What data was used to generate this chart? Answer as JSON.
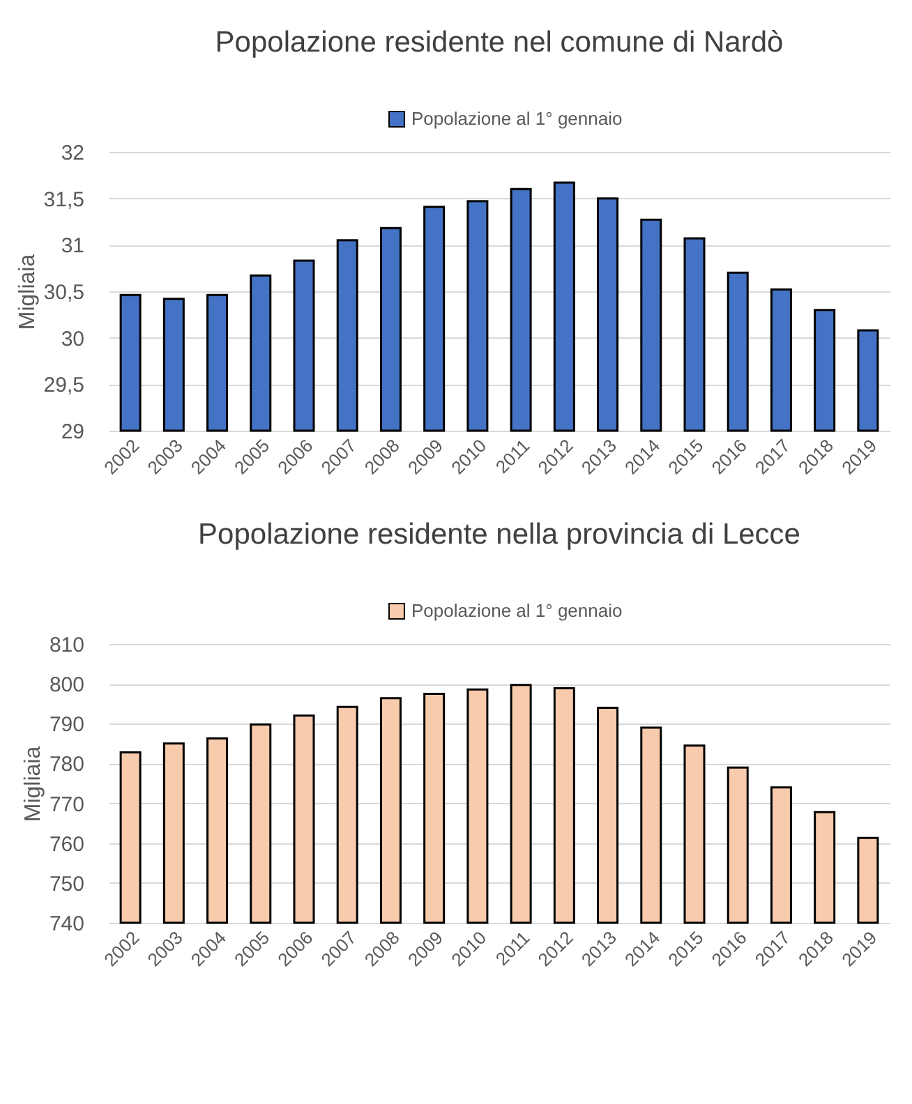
{
  "chart_data": [
    {
      "type": "bar",
      "title": "Popolazione residente nel comune di Nardò",
      "ylabel": "Migliaia",
      "categories": [
        "2002",
        "2003",
        "2004",
        "2005",
        "2006",
        "2007",
        "2008",
        "2009",
        "2010",
        "2011",
        "2012",
        "2013",
        "2014",
        "2015",
        "2016",
        "2017",
        "2018",
        "2019"
      ],
      "series": [
        {
          "name": "Popolazione al 1° gennaio",
          "color": "#4472c4",
          "values": [
            30.46,
            30.42,
            30.46,
            30.67,
            30.83,
            31.05,
            31.18,
            31.41,
            31.47,
            31.6,
            31.67,
            31.5,
            31.27,
            31.07,
            30.7,
            30.52,
            30.3,
            30.08
          ]
        }
      ],
      "ylim": [
        29,
        32
      ],
      "yticks": [
        29,
        {
          "value": 29.5,
          "label": "29,5"
        },
        30,
        {
          "value": 30.5,
          "label": "30,5"
        },
        31,
        {
          "value": 31.5,
          "label": "31,5"
        },
        32
      ],
      "grid": "y",
      "legend": "top"
    },
    {
      "type": "bar",
      "title": "Popolazione residente nella provincia di Lecce",
      "ylabel": "Migliaia",
      "categories": [
        "2002",
        "2003",
        "2004",
        "2005",
        "2006",
        "2007",
        "2008",
        "2009",
        "2010",
        "2011",
        "2012",
        "2013",
        "2014",
        "2015",
        "2016",
        "2017",
        "2018",
        "2019"
      ],
      "series": [
        {
          "name": "Popolazione al 1° gennaio",
          "color": "#f8cbad",
          "values": [
            782.8,
            785,
            786.3,
            789.8,
            792,
            794.2,
            796.4,
            797.5,
            798.6,
            799.7,
            798.9,
            794,
            789,
            784.5,
            779,
            774,
            767.8,
            761.3
          ]
        }
      ],
      "ylim": [
        740,
        810
      ],
      "yticks": [
        740,
        750,
        760,
        770,
        780,
        790,
        800,
        810
      ],
      "grid": "y",
      "legend": "top"
    }
  ]
}
